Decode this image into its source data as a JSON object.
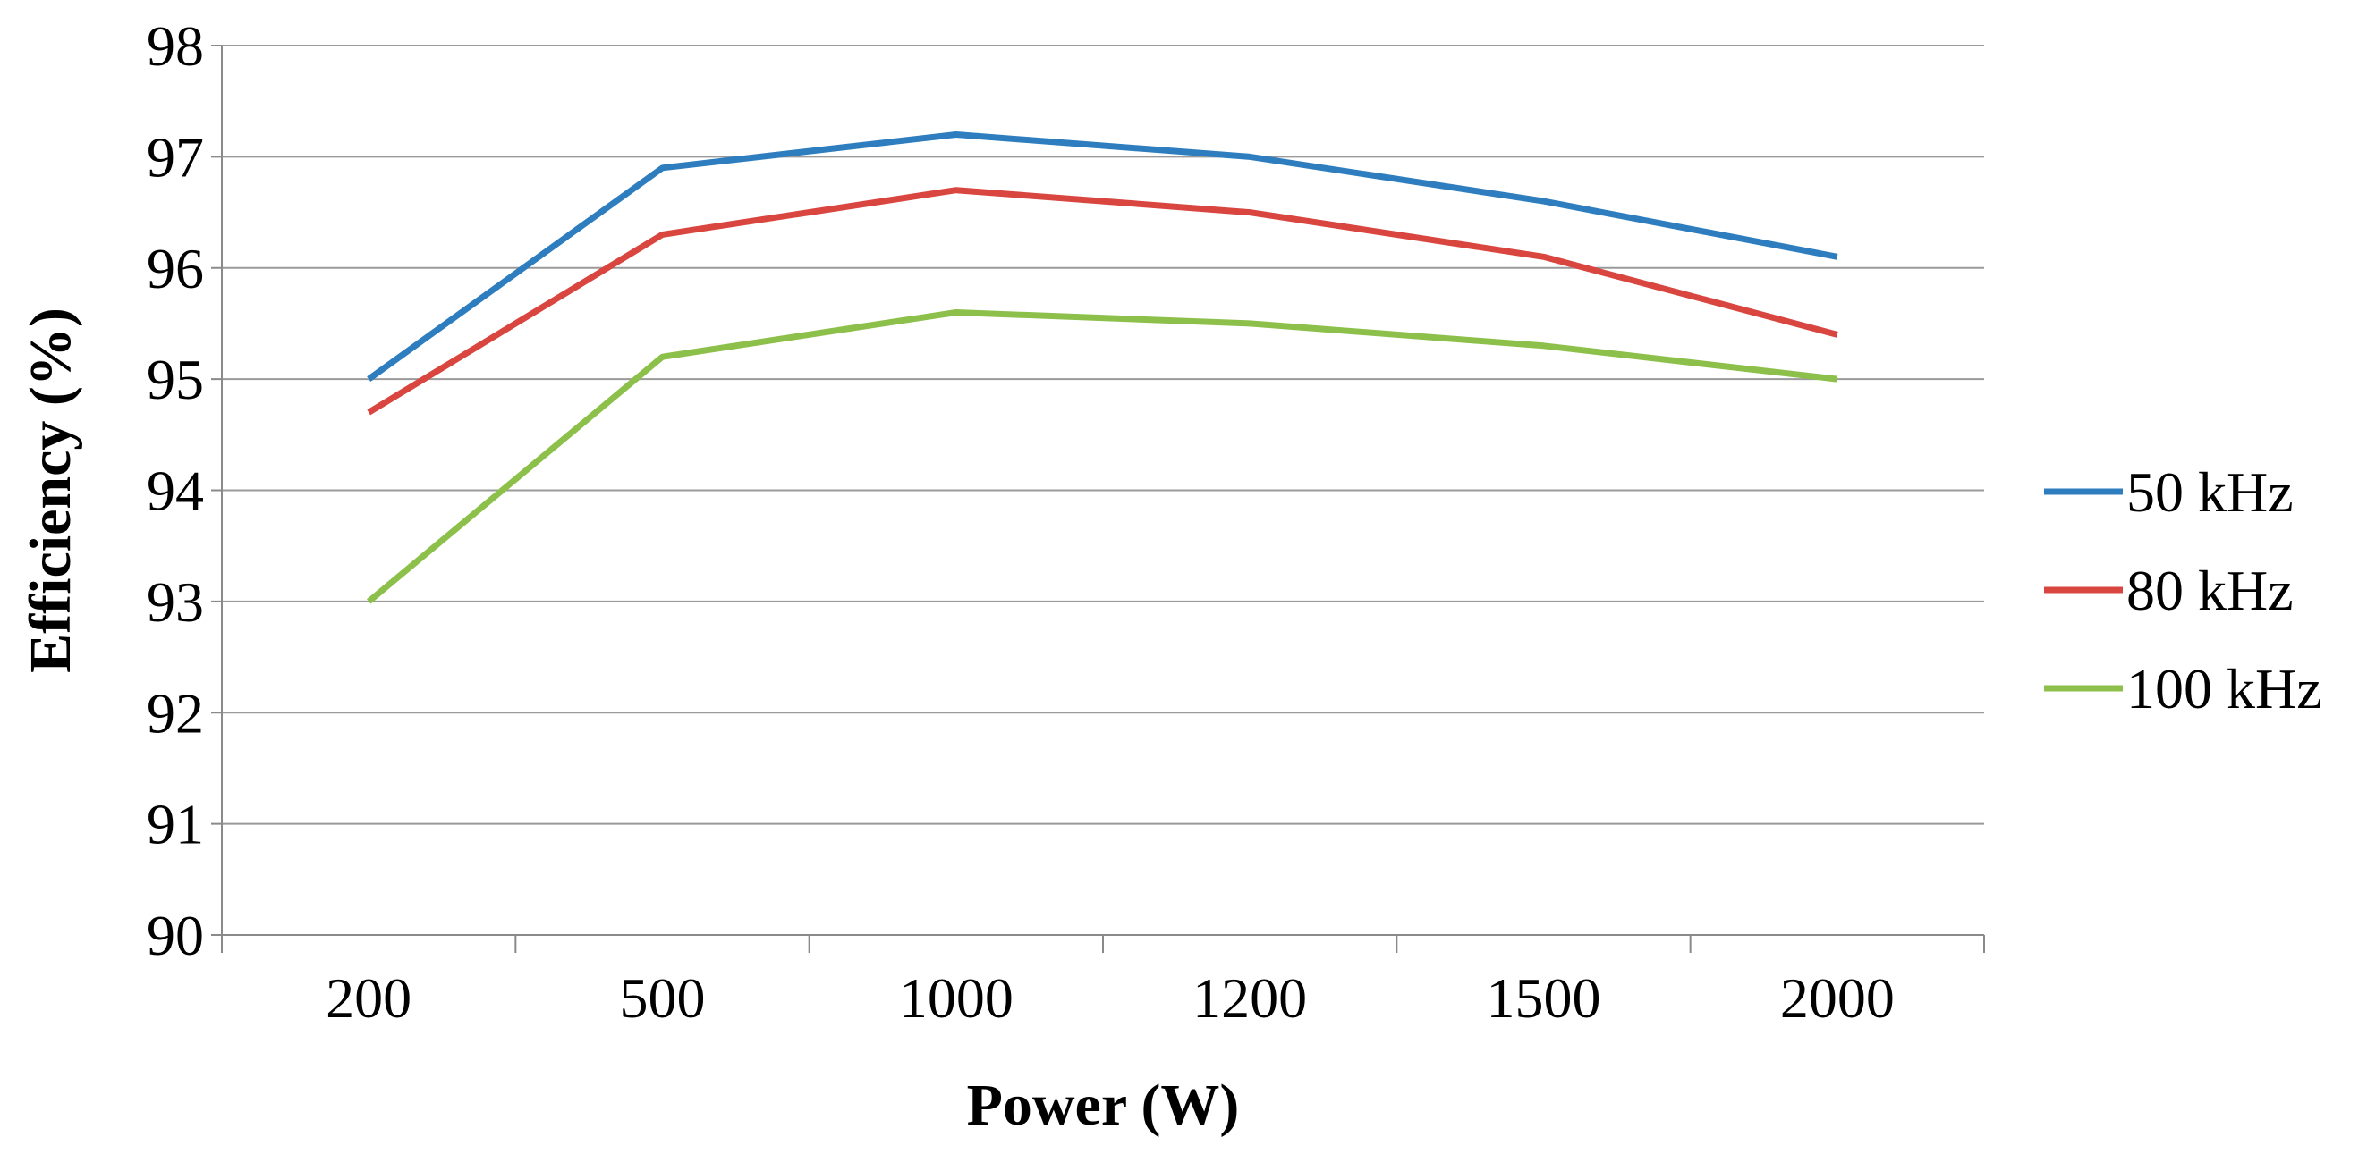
{
  "chart_data": {
    "type": "line",
    "title": "",
    "xlabel": "Power (W)",
    "ylabel": "Efficiency (%)",
    "categories": [
      "200",
      "500",
      "1000",
      "1200",
      "1500",
      "2000"
    ],
    "ylim": [
      90,
      98
    ],
    "yticks": [
      "90",
      "91",
      "92",
      "93",
      "94",
      "95",
      "96",
      "97",
      "98"
    ],
    "grid": true,
    "legend_position": "right",
    "series": [
      {
        "name": "50 kHz",
        "color": "#2e7ebf",
        "values": [
          95.0,
          96.9,
          97.2,
          97.0,
          96.6,
          96.1
        ]
      },
      {
        "name": "80 kHz",
        "color": "#d9453f",
        "values": [
          94.7,
          96.3,
          96.7,
          96.5,
          96.1,
          95.4
        ]
      },
      {
        "name": "100 kHz",
        "color": "#8cc04a",
        "values": [
          93.0,
          95.2,
          95.6,
          95.5,
          95.3,
          95.0
        ]
      }
    ]
  }
}
